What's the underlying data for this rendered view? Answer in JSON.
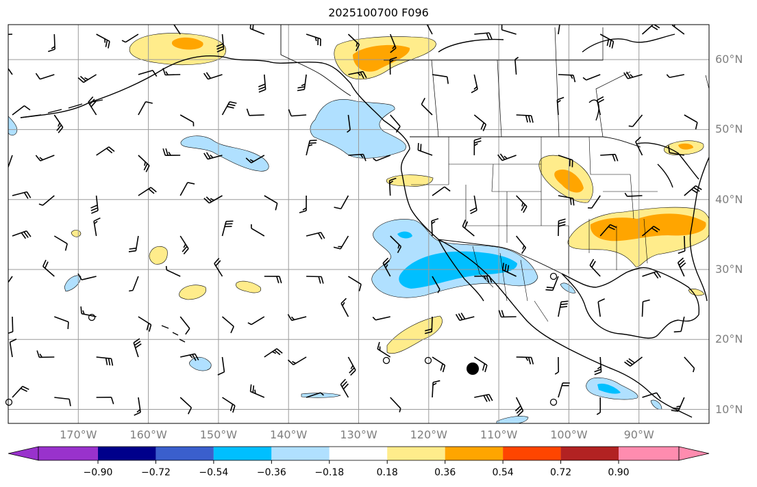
{
  "title": "2025100700 F096",
  "lat_labels": [
    "60°N",
    "50°N",
    "40°N",
    "30°N",
    "20°N",
    "10°N"
  ],
  "lat_values": [
    60,
    50,
    40,
    30,
    20,
    10
  ],
  "lon_labels": [
    "170°W",
    "160°W",
    "150°W",
    "140°W",
    "130°W",
    "120°W",
    "110°W",
    "100°W",
    "90°W"
  ],
  "lon_values": [
    -170,
    -160,
    -150,
    -140,
    -130,
    -120,
    -110,
    -100,
    -90
  ],
  "colorbar": {
    "tick_labels": [
      "−0.90",
      "−0.72",
      "−0.54",
      "−0.36",
      "−0.18",
      "0.18",
      "0.36",
      "0.54",
      "0.72",
      "0.90"
    ],
    "levels": [
      -0.9,
      -0.72,
      -0.54,
      -0.36,
      -0.18,
      0.18,
      0.36,
      0.54,
      0.72,
      0.9
    ],
    "colors": [
      "#9932cc",
      "#00008b",
      "#3a5fcd",
      "#00bfff",
      "#b0e0ff",
      "#ffffff",
      "#ffec8b",
      "#ffa500",
      "#ff4500",
      "#b22222",
      "#ff8caf"
    ]
  },
  "map": {
    "lon_range": [
      -180,
      -80
    ],
    "lat_range": [
      8,
      65
    ],
    "grid": true
  },
  "anomaly_regions": [
    {
      "name": "alaska-positive",
      "level": 0.18,
      "color": "#ffec8b"
    },
    {
      "name": "bc-positive",
      "level": 0.36,
      "color": "#ffa500"
    },
    {
      "name": "gulf-of-alaska-negative",
      "level": -0.18,
      "color": "#b0e0ff"
    },
    {
      "name": "subtropical-negative",
      "level": -0.36,
      "color": "#00bfff"
    },
    {
      "name": "plains-positive",
      "level": 0.36,
      "color": "#ffa500"
    },
    {
      "name": "ohio-valley-positive",
      "level": 0.36,
      "color": "#ffa500"
    },
    {
      "name": "central-america-negative",
      "level": -0.36,
      "color": "#00bfff"
    }
  ],
  "marker": {
    "name": "large-dot",
    "lon": -113,
    "lat": 16
  }
}
